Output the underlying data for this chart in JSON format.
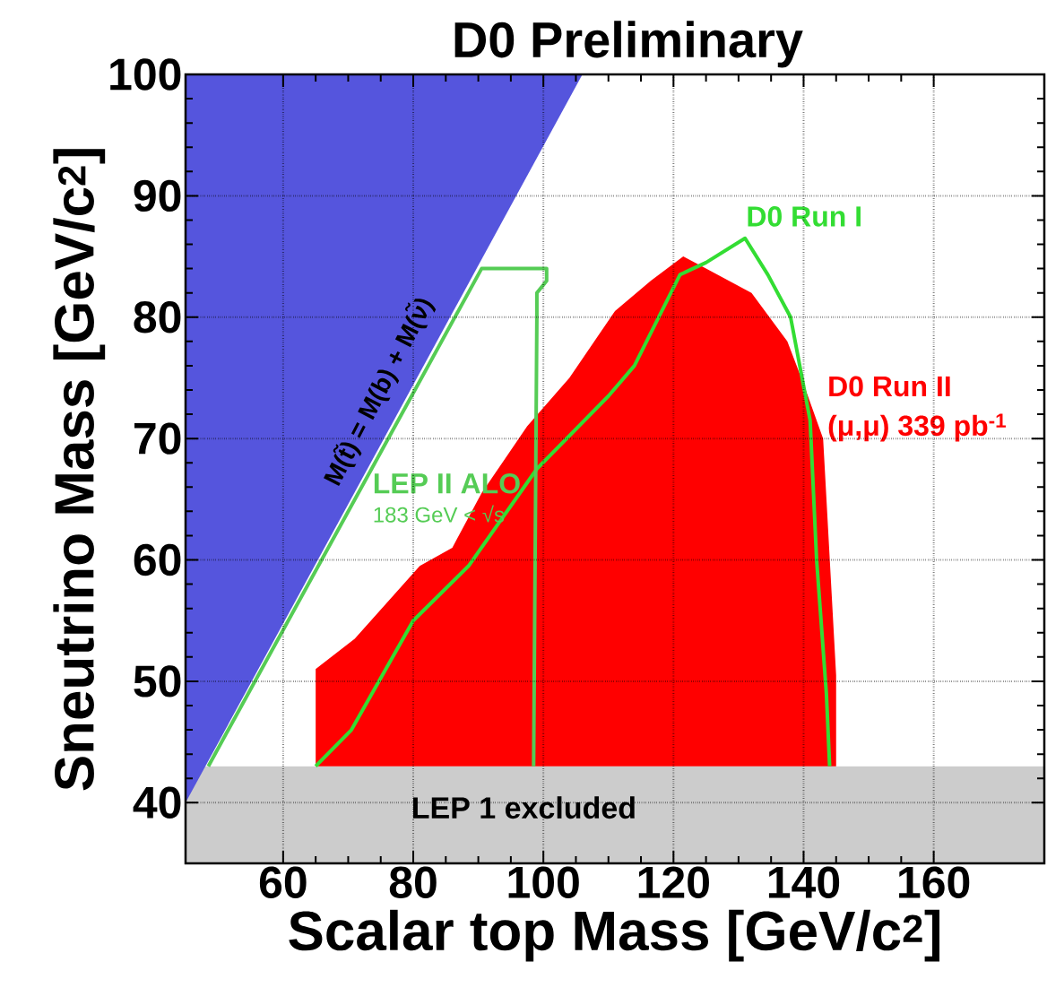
{
  "chart_data": {
    "type": "area",
    "title": "D0 Preliminary",
    "xlabel": "Scalar top Mass [GeV/c$^{2}$]",
    "ylabel": "Sneutrino Mass [GeV/c$^{2}$]",
    "xlim": [
      45,
      177
    ],
    "ylim": [
      35,
      100
    ],
    "xticks": [
      60,
      80,
      100,
      120,
      140,
      160
    ],
    "yticks": [
      40,
      50,
      60,
      70,
      80,
      90,
      100
    ],
    "grid": true,
    "series": [
      {
        "color": "#5555dd",
        "x": [
          45,
          106,
          45
        ],
        "values": [
          40,
          100,
          100
        ]
      },
      {
        "name": "D0 Run II",
        "color": "#ff0000",
        "x": [
          65,
          65,
          71,
          81,
          86,
          90.5,
          97.5,
          104,
          111,
          116.5,
          121.5,
          125,
          132,
          137.5,
          140,
          143,
          145,
          145
        ],
        "values": [
          43,
          51,
          53.5,
          59.5,
          61,
          65.5,
          71,
          75,
          80.5,
          83,
          85,
          84,
          82,
          78,
          74.5,
          70,
          50.5,
          43
        ]
      },
      {
        "type": "line",
        "name": "D0 Run I",
        "color": "#33dd33",
        "x": [
          65,
          70.5,
          80,
          88.5,
          99,
          110,
          114,
          121,
          125,
          131,
          134.5,
          138,
          141,
          142,
          143.5,
          144
        ],
        "values": [
          43,
          46,
          55,
          59.5,
          67.5,
          73.5,
          76,
          83.5,
          84.5,
          86.5,
          83.5,
          80,
          71.5,
          60,
          49,
          43
        ]
      },
      {
        "type": "line",
        "name": "LEP II ALO",
        "color": "#55cc55",
        "x": [
          48.5,
          90.5,
          100.5,
          100.5,
          99,
          99,
          98.5
        ],
        "values": [
          43,
          84,
          84,
          83,
          82,
          80,
          43
        ]
      }
    ],
    "bands": [
      {
        "axis": "y",
        "from": 35,
        "to": 43,
        "label": "LEP 1 excluded",
        "color": "#cccccc"
      }
    ],
    "annotations": [
      "M(t̃) = M(b) + M(ν̃)",
      "183 GeV < √s",
      "(μ,μ) 339 pb$^{-1}$"
    ]
  }
}
